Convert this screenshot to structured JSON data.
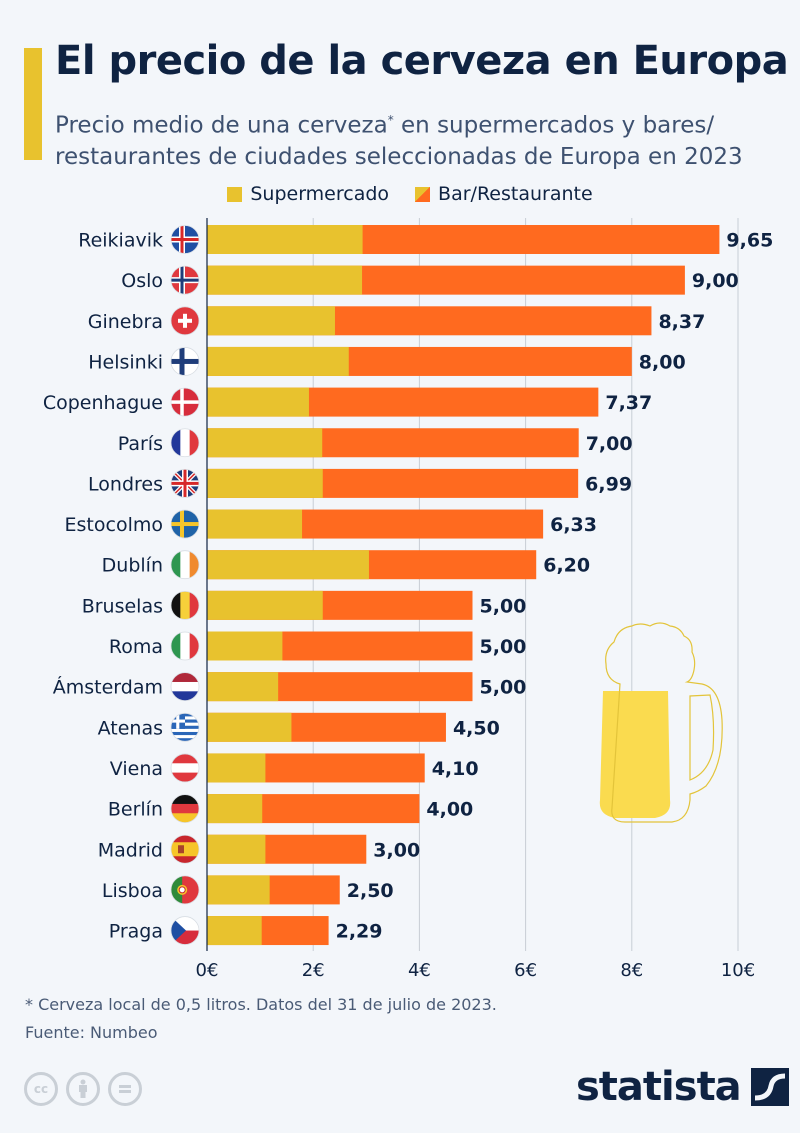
{
  "header": {
    "title": "El precio de la cerveza en Europa",
    "subtitle_line1": "Precio medio de una cerveza",
    "subtitle_asterisk": "*",
    "subtitle_line1_rest": " en supermercados y bares/",
    "subtitle_line2": "restaurantes de ciudades seleccionadas de Europa en 2023"
  },
  "footer": {
    "footnote": "* Cerveza local de 0,5 litros. Datos del 31 de julio de 2023.",
    "source": "Fuente: Numbeo",
    "cc_icons": [
      "cc-icon",
      "by-icon",
      "nd-icon"
    ],
    "logo_text": "statista"
  },
  "colors": {
    "supermercado": "#E8C22E",
    "bar_restaurante": "#FF6A1F",
    "accent": "#E8C22E",
    "title": "#0F2342",
    "beer": "#FADB4F"
  },
  "chart_data": {
    "type": "bar",
    "orientation": "horizontal",
    "stacking": "overlay",
    "title": "El precio de la cerveza en Europa",
    "subtitle": "Precio medio de una cerveza* en supermercados y bares/restaurantes de ciudades seleccionadas de Europa en 2023",
    "xlabel": "",
    "ylabel": "",
    "xlim": [
      0,
      10
    ],
    "xticks": [
      0,
      2,
      4,
      6,
      8,
      10
    ],
    "xtick_labels": [
      "0€",
      "2€",
      "4€",
      "6€",
      "8€",
      "10€"
    ],
    "grid": true,
    "legend_position": "top-center",
    "categories": [
      "Reikiavik",
      "Oslo",
      "Ginebra",
      "Helsinki",
      "Copenhague",
      "París",
      "Londres",
      "Estocolmo",
      "Dublín",
      "Bruselas",
      "Roma",
      "Ámsterdam",
      "Atenas",
      "Viena",
      "Berlín",
      "Madrid",
      "Lisboa",
      "Praga"
    ],
    "flags": [
      "iceland",
      "norway",
      "switzerland",
      "finland",
      "denmark",
      "france",
      "uk",
      "sweden",
      "ireland",
      "belgium",
      "italy",
      "netherlands",
      "greece",
      "austria",
      "germany",
      "spain",
      "portugal",
      "czechia"
    ],
    "series": [
      {
        "name": "Supermercado",
        "values": [
          2.93,
          2.92,
          2.41,
          2.67,
          1.92,
          2.17,
          2.18,
          1.79,
          3.05,
          2.18,
          1.42,
          1.34,
          1.59,
          1.1,
          1.04,
          1.1,
          1.18,
          1.03
        ]
      },
      {
        "name": "Bar/Restaurante",
        "values": [
          9.65,
          9.0,
          8.37,
          8.0,
          7.37,
          7.0,
          6.99,
          6.33,
          6.2,
          5.0,
          5.0,
          5.0,
          4.5,
          4.1,
          4.0,
          3.0,
          2.5,
          2.29
        ]
      }
    ],
    "data_labels": [
      "9,65",
      "9,00",
      "8,37",
      "8,00",
      "7,37",
      "7,00",
      "6,99",
      "6,33",
      "6,20",
      "5,00",
      "5,00",
      "5,00",
      "4,50",
      "4,10",
      "4,00",
      "3,00",
      "2,50",
      "2,29"
    ]
  }
}
